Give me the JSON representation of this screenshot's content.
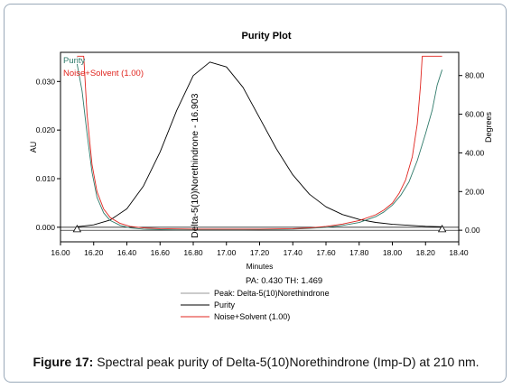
{
  "chart_data": {
    "type": "line",
    "title": "Purity Plot",
    "xlabel": "Minutes",
    "ylabel": "AU",
    "y2label": "Degrees",
    "xlim": [
      16.0,
      18.4
    ],
    "ylim": [
      -0.003,
      0.036
    ],
    "y2lim": [
      -6,
      92
    ],
    "x_ticks": [
      "16.00",
      "16.20",
      "16.40",
      "16.60",
      "16.80",
      "17.00",
      "17.20",
      "17.40",
      "17.60",
      "17.80",
      "18.00",
      "18.20",
      "18.40"
    ],
    "y_ticks": [
      "0.000",
      "0.010",
      "0.020",
      "0.030"
    ],
    "y2_ticks": [
      "0.00",
      "20.00",
      "40.00",
      "60.00",
      "80.00"
    ],
    "legend_placement": "top-left",
    "peak_label": "Delta-5(10)Norethindrone - 16.903",
    "stats_text": "PA:  0.430  TH:  1.469",
    "bottom_legend": [
      "Peak: Delta-5(10)Norethindrone",
      "Purity",
      "Noise+Solvent (1.00)"
    ],
    "series": [
      {
        "name": "Peak: Delta-5(10)Norethindrone",
        "axis": "left",
        "color": "#000000",
        "x": [
          16.1,
          16.2,
          16.3,
          16.4,
          16.5,
          16.6,
          16.7,
          16.8,
          16.9,
          17.0,
          17.1,
          17.2,
          17.3,
          17.4,
          17.5,
          17.6,
          17.7,
          17.8,
          17.9,
          18.0,
          18.1,
          18.2,
          18.3
        ],
        "y": [
          0.0001,
          0.0005,
          0.0015,
          0.0038,
          0.0085,
          0.0155,
          0.024,
          0.0312,
          0.034,
          0.033,
          0.0288,
          0.0225,
          0.0162,
          0.0108,
          0.0068,
          0.0042,
          0.0026,
          0.0016,
          0.001,
          0.0006,
          0.0004,
          0.0002,
          0.0001
        ]
      },
      {
        "name": "Purity",
        "axis": "right",
        "color": "#2f7a6a",
        "x": [
          16.1,
          16.13,
          16.16,
          16.19,
          16.22,
          16.26,
          16.3,
          16.36,
          16.42,
          16.5,
          16.6,
          16.7,
          16.8,
          16.9,
          17.0,
          17.1,
          17.2,
          17.3,
          17.4,
          17.5,
          17.6,
          17.7,
          17.8,
          17.9,
          17.95,
          18.0,
          18.05,
          18.1,
          18.15,
          18.2,
          18.24,
          18.27,
          18.3
        ],
        "y": [
          86.0,
          72.0,
          50.0,
          30.0,
          17.0,
          9.0,
          5.0,
          2.5,
          1.2,
          0.6,
          0.3,
          0.2,
          0.2,
          0.2,
          0.2,
          0.2,
          0.3,
          0.4,
          0.6,
          1.0,
          1.5,
          2.5,
          4.0,
          7.0,
          9.5,
          13.0,
          18.0,
          25.0,
          36.0,
          50.0,
          62.0,
          75.0,
          83.0
        ]
      },
      {
        "name": "Noise+Solvent (1.00)",
        "axis": "right",
        "color": "#e0251f",
        "x": [
          16.1,
          16.12,
          16.14,
          16.16,
          16.19,
          16.22,
          16.26,
          16.3,
          16.36,
          16.42,
          16.5,
          16.6,
          16.8,
          17.0,
          17.2,
          17.4,
          17.5,
          17.6,
          17.7,
          17.8,
          17.9,
          17.95,
          18.0,
          18.04,
          18.08,
          18.12,
          18.15,
          18.17,
          18.18,
          18.3
        ],
        "y": [
          90.0,
          90.0,
          90.0,
          60.0,
          34.0,
          20.0,
          11.0,
          6.5,
          3.5,
          2.0,
          1.2,
          0.8,
          0.6,
          0.6,
          0.6,
          0.8,
          1.2,
          2.0,
          3.2,
          5.0,
          8.0,
          10.5,
          14.0,
          19.0,
          26.0,
          38.0,
          55.0,
          75.0,
          90.0,
          90.0
        ]
      }
    ]
  },
  "caption": {
    "label": "Figure 17:",
    "text": " Spectral peak purity of Delta-5(10)Norethindrone (Imp-D) at 210 nm."
  }
}
